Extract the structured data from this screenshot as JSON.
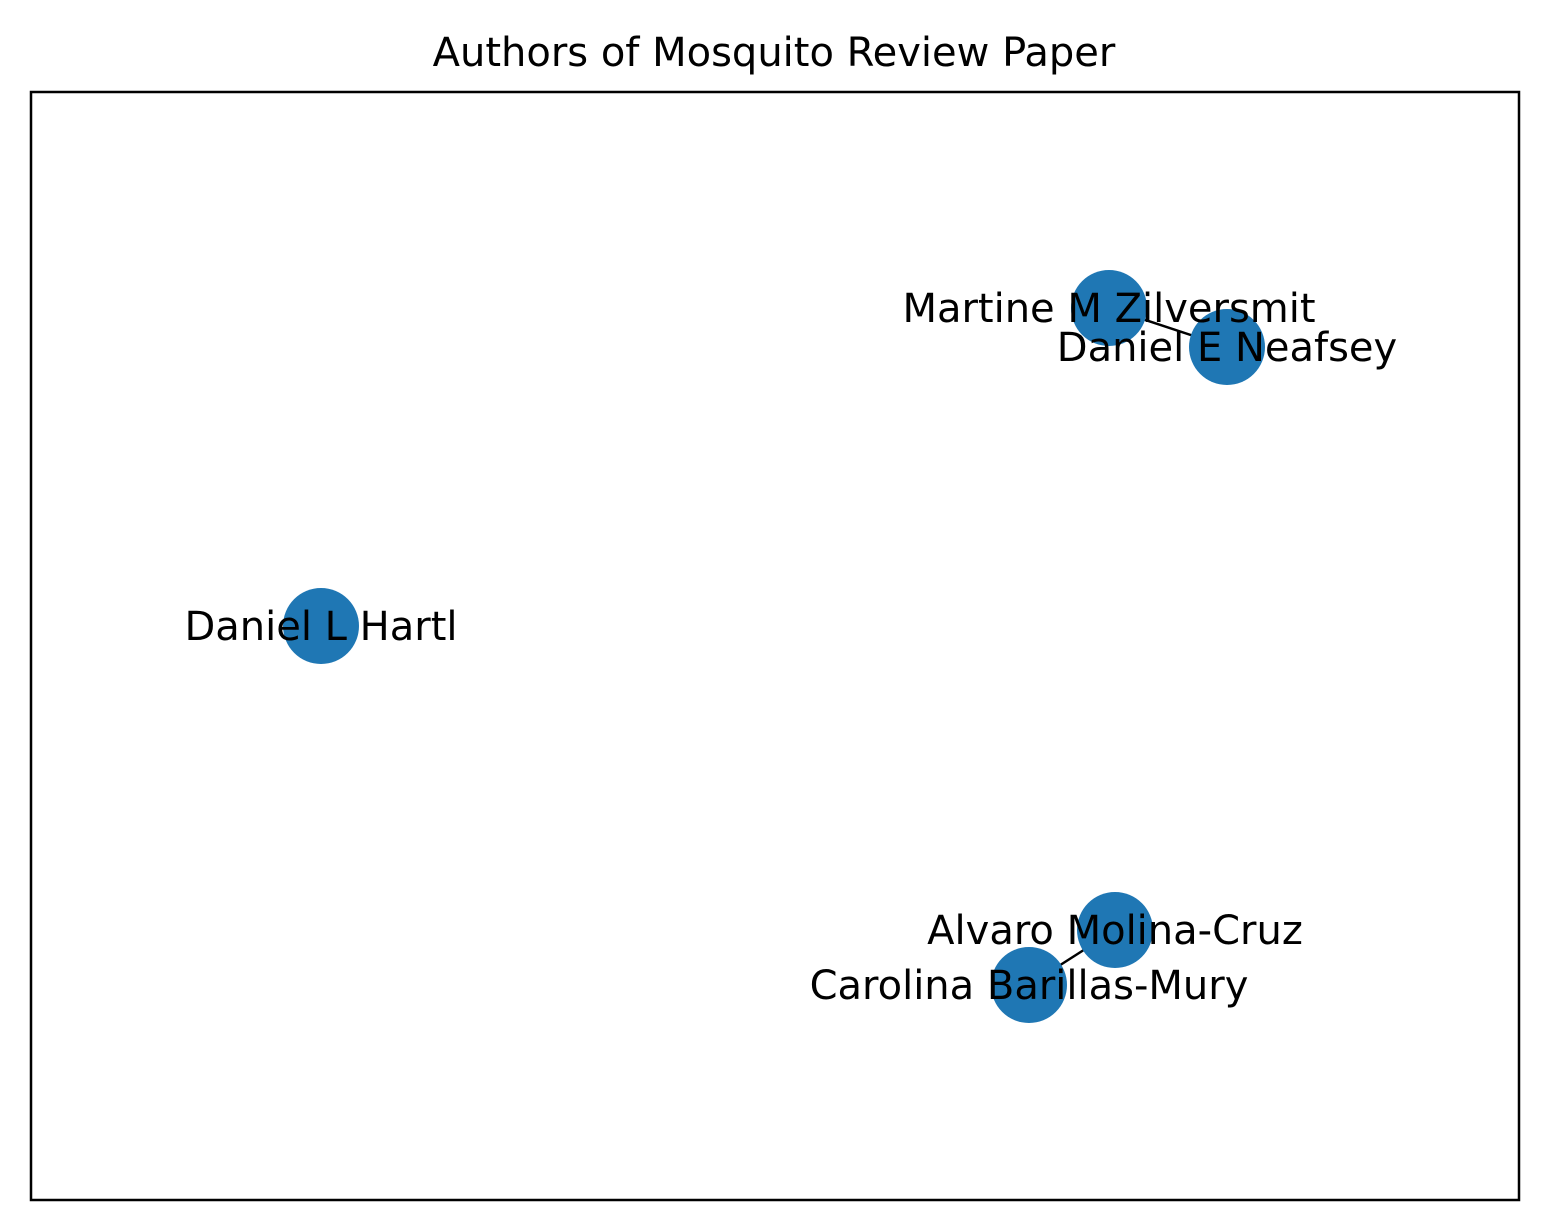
{
  "figure": {
    "title": "Authors of Mosquito Review Paper"
  },
  "graph": {
    "node_color": "#1f77b4",
    "edge_color": "#000000",
    "frame_color": "#000000",
    "nodes": [
      {
        "id": "zilversmit",
        "label": "Martine M Zilversmit"
      },
      {
        "id": "neafsey",
        "label": "Daniel E Neafsey"
      },
      {
        "id": "hartl",
        "label": "Daniel L Hartl"
      },
      {
        "id": "molina",
        "label": "Alvaro Molina-Cruz"
      },
      {
        "id": "barillas",
        "label": "Carolina Barillas-Mury"
      }
    ],
    "edges": [
      {
        "source": "zilversmit",
        "target": "neafsey"
      },
      {
        "source": "molina",
        "target": "barillas"
      }
    ]
  }
}
